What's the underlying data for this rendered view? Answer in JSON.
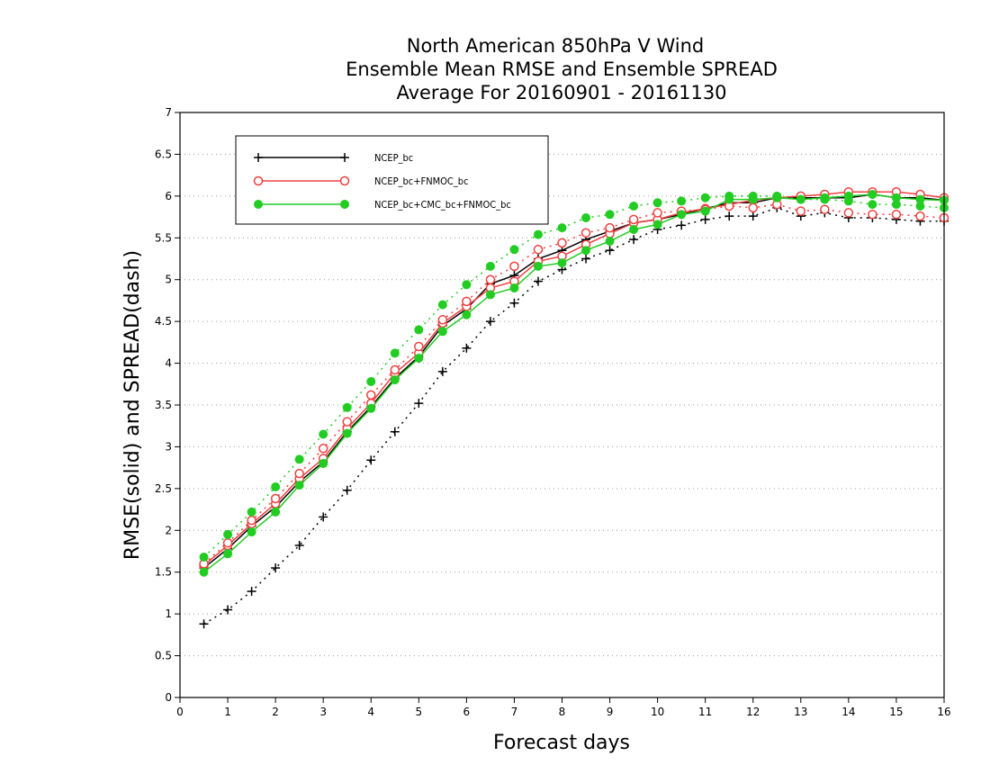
{
  "chart_data": {
    "type": "line",
    "title": [
      "North American 850hPa V Wind",
      "Ensemble Mean RMSE and Ensemble SPREAD",
      "Average For 20160901 - 20161130"
    ],
    "xlabel": "Forecast days",
    "ylabel": "RMSE(solid) and SPREAD(dash)",
    "xlim": [
      0,
      16
    ],
    "ylim": [
      0,
      7
    ],
    "xticks": [
      "0",
      "1",
      "2",
      "3",
      "4",
      "5",
      "6",
      "7",
      "8",
      "9",
      "10",
      "11",
      "12",
      "13",
      "14",
      "15",
      "16"
    ],
    "yticks": [
      "0",
      "0.5",
      "1",
      "1.5",
      "2",
      "2.5",
      "3",
      "3.5",
      "4",
      "4.5",
      "5",
      "5.5",
      "6",
      "6.5",
      "7"
    ],
    "grid": "horizontal dotted",
    "legend_position": "top-left",
    "x": [
      0.5,
      1,
      1.5,
      2,
      2.5,
      3,
      3.5,
      4,
      4.5,
      5,
      5.5,
      6,
      6.5,
      7,
      7.5,
      8,
      8.5,
      9,
      9.5,
      10,
      10.5,
      11,
      11.5,
      12,
      12.5,
      13,
      13.5,
      14,
      14.5,
      15,
      15.5,
      16
    ],
    "series": [
      {
        "name": "NCEP_bc",
        "color": "#000000",
        "marker": "plus",
        "rmse": [
          1.55,
          1.78,
          2.05,
          2.28,
          2.58,
          2.82,
          3.18,
          3.48,
          3.82,
          4.08,
          4.45,
          4.65,
          4.95,
          5.05,
          5.25,
          5.35,
          5.48,
          5.58,
          5.68,
          5.72,
          5.78,
          5.85,
          5.92,
          5.92,
          5.98,
          5.98,
          5.98,
          5.98,
          6.02,
          5.98,
          5.98,
          5.95
        ],
        "spread": [
          0.88,
          1.05,
          1.27,
          1.55,
          1.82,
          2.16,
          2.48,
          2.84,
          3.18,
          3.52,
          3.9,
          4.18,
          4.5,
          4.72,
          4.98,
          5.12,
          5.25,
          5.35,
          5.48,
          5.6,
          5.65,
          5.72,
          5.76,
          5.76,
          5.86,
          5.76,
          5.8,
          5.74,
          5.74,
          5.72,
          5.7,
          5.7
        ]
      },
      {
        "name": "NCEP_bc+FNMOC_bc",
        "color": "#f04040",
        "marker": "open-circle",
        "rmse": [
          1.58,
          1.82,
          2.08,
          2.32,
          2.62,
          2.86,
          3.22,
          3.52,
          3.88,
          4.12,
          4.48,
          4.68,
          4.9,
          4.98,
          5.22,
          5.28,
          5.42,
          5.55,
          5.68,
          5.72,
          5.8,
          5.85,
          5.9,
          5.95,
          5.98,
          6.0,
          6.02,
          6.05,
          6.05,
          6.05,
          6.02,
          5.98
        ],
        "spread": [
          1.6,
          1.85,
          2.12,
          2.38,
          2.68,
          2.98,
          3.3,
          3.62,
          3.92,
          4.2,
          4.52,
          4.74,
          5.0,
          5.16,
          5.36,
          5.44,
          5.56,
          5.62,
          5.72,
          5.8,
          5.82,
          5.84,
          5.88,
          5.86,
          5.9,
          5.82,
          5.84,
          5.8,
          5.78,
          5.78,
          5.76,
          5.74
        ]
      },
      {
        "name": "NCEP_bc+CMC_bc+FNMOC_bc",
        "color": "#22cc22",
        "marker": "filled-circle",
        "rmse": [
          1.5,
          1.72,
          1.98,
          2.22,
          2.54,
          2.8,
          3.16,
          3.46,
          3.8,
          4.06,
          4.38,
          4.58,
          4.82,
          4.9,
          5.16,
          5.2,
          5.35,
          5.46,
          5.6,
          5.66,
          5.78,
          5.82,
          5.96,
          5.96,
          5.98,
          5.96,
          5.98,
          6.0,
          6.02,
          5.98,
          5.96,
          5.95
        ],
        "spread": [
          1.68,
          1.95,
          2.22,
          2.52,
          2.85,
          3.15,
          3.47,
          3.78,
          4.12,
          4.4,
          4.7,
          4.94,
          5.16,
          5.36,
          5.54,
          5.62,
          5.74,
          5.78,
          5.88,
          5.92,
          5.94,
          5.98,
          6.0,
          6.0,
          6.0,
          5.96,
          5.96,
          5.94,
          5.9,
          5.9,
          5.88,
          5.86
        ]
      }
    ]
  }
}
